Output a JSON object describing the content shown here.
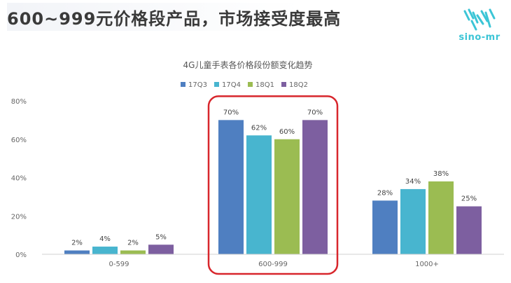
{
  "header": {
    "headline": "600~999元价格段产品，市场接受度最高",
    "logo_text": "sino-mr"
  },
  "colors": {
    "series": [
      "#4f7fc1",
      "#48b5cf",
      "#9bbc52",
      "#7d5fa0"
    ],
    "highlight": "#d8262c"
  },
  "chart_data": {
    "type": "bar",
    "title": "4G儿童手表各价格段份额变化趋势",
    "xlabel": "",
    "ylabel": "",
    "categories": [
      "0-599",
      "600-999",
      "1000+"
    ],
    "series": [
      {
        "name": "17Q3",
        "values": [
          2,
          70,
          28
        ]
      },
      {
        "name": "17Q4",
        "values": [
          4,
          62,
          34
        ]
      },
      {
        "name": "18Q1",
        "values": [
          2,
          60,
          38
        ]
      },
      {
        "name": "18Q2",
        "values": [
          5,
          70,
          25
        ]
      }
    ],
    "y_ticks": [
      "0%",
      "20%",
      "40%",
      "60%",
      "80%"
    ],
    "value_suffix": "%",
    "ylim": [
      0,
      80
    ],
    "grid": false,
    "legend_position": "top",
    "highlight_category": "600-999"
  }
}
